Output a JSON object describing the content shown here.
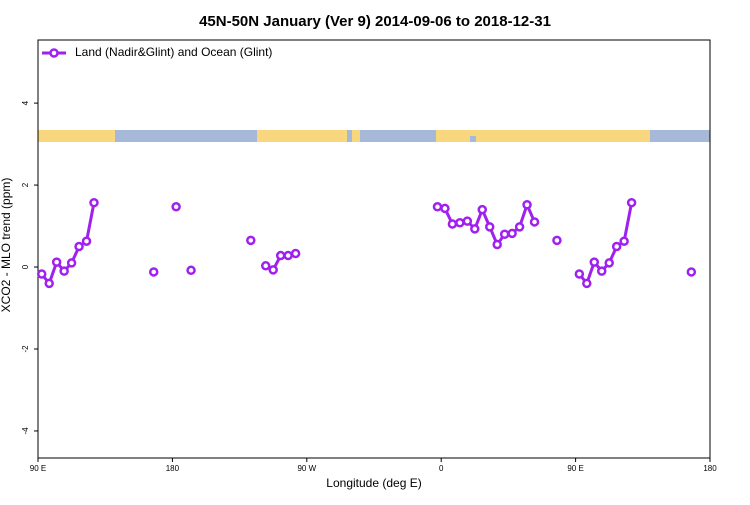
{
  "chart_data": {
    "type": "line",
    "title": "45N-50N January (Ver 9)   2014-09-06 to 2018-12-31",
    "x_label": "Longitude (deg E)",
    "y_label": "XCO2 - MLO trend (ppm)",
    "xlim": [
      90,
      540
    ],
    "xticks": [
      {
        "value": 90,
        "label": "90 E"
      },
      {
        "value": 180,
        "label": "180"
      },
      {
        "value": 270,
        "label": "90 W"
      },
      {
        "value": 360,
        "label": "0"
      },
      {
        "value": 450,
        "label": "90 E"
      },
      {
        "value": 540,
        "label": "180"
      }
    ],
    "ylim": [
      -4.66,
      5.54
    ],
    "yticks": [
      -4,
      -2,
      0,
      2,
      4
    ],
    "legend": "top-left",
    "series": [
      {
        "name": "Land (Nadir&Glint) and Ocean (Glint)",
        "color": "#a020f0",
        "x": [
          92.5,
          97.5,
          102.5,
          107.5,
          112.5,
          117.5,
          122.5,
          127.5,
          null,
          167.5,
          null,
          182.5,
          null,
          192.5,
          null,
          232.5,
          null,
          242.5,
          247.5,
          252.5,
          257.5,
          262.5,
          null,
          357.5,
          362.5,
          367.5,
          372.5,
          377.5,
          382.5,
          387.5,
          392.5,
          397.5,
          402.5,
          407.5,
          412.5,
          417.5,
          422.5,
          null,
          437.5,
          null,
          452.5,
          457.5,
          462.5,
          467.5,
          472.5,
          477.5,
          482.5,
          487.5,
          null,
          527.5
        ],
        "values": [
          -0.17,
          -0.4,
          0.12,
          -0.1,
          0.1,
          0.5,
          0.63,
          1.57,
          null,
          -0.12,
          null,
          1.47,
          null,
          -0.08,
          null,
          0.65,
          null,
          0.03,
          -0.07,
          0.28,
          0.28,
          0.33,
          null,
          1.47,
          1.43,
          1.05,
          1.08,
          1.12,
          0.93,
          1.4,
          0.98,
          0.55,
          0.8,
          0.82,
          0.98,
          1.52,
          1.1,
          null,
          0.65,
          null,
          -0.17,
          -0.4,
          0.12,
          -0.1,
          0.1,
          0.5,
          0.63,
          1.57,
          null,
          -0.12
        ]
      }
    ]
  }
}
